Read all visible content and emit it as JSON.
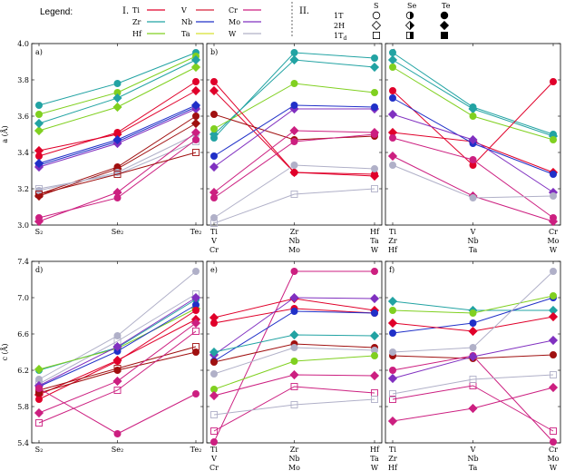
{
  "legend": {
    "title": "Legend:",
    "group1_label": "I.",
    "group2_label": "II.",
    "elements": [
      {
        "name": "Ti",
        "color": "#e0002a"
      },
      {
        "name": "V",
        "color": "#d8203a"
      },
      {
        "name": "Cr",
        "color": "#cc1f80"
      },
      {
        "name": "Zr",
        "color": "#22a3a3"
      },
      {
        "name": "Nb",
        "color": "#2030c8"
      },
      {
        "name": "Mo",
        "color": "#8030c0"
      },
      {
        "name": "Hf",
        "color": "#80d020"
      },
      {
        "name": "Ta",
        "color": "#d8e030"
      },
      {
        "name": "W",
        "color": "#b0b0c8"
      }
    ],
    "phases": [
      "1T",
      "2H",
      "1T_d"
    ],
    "chalcogens": [
      "S",
      "Se",
      "Te"
    ]
  },
  "chart_data": [
    {
      "panel": "a)",
      "type": "line",
      "ylabel": "a (Å)",
      "categories": [
        "S₂",
        "Se₂",
        "Te₂"
      ],
      "ylim": [
        3.0,
        4.0
      ],
      "yticks": [
        "3.0",
        "3.2",
        "3.4",
        "3.6",
        "3.8",
        "4.0"
      ],
      "series": [
        {
          "color": "#22a3a3",
          "marker": "circle",
          "values": [
            3.66,
            3.78,
            3.95
          ]
        },
        {
          "color": "#80d020",
          "marker": "circle",
          "values": [
            3.61,
            3.73,
            3.93
          ]
        },
        {
          "color": "#80d020",
          "marker": "diamond",
          "values": [
            3.52,
            3.65,
            3.87
          ]
        },
        {
          "color": "#22a3a3",
          "marker": "diamond",
          "values": [
            3.56,
            3.7,
            3.91
          ]
        },
        {
          "color": "#e0002a",
          "marker": "circle",
          "values": [
            3.38,
            3.51,
            3.79
          ]
        },
        {
          "color": "#e0002a",
          "marker": "diamond",
          "values": [
            3.41,
            3.5,
            3.74
          ]
        },
        {
          "color": "#2030c8",
          "marker": "circle",
          "values": [
            3.33,
            3.46,
            3.65
          ]
        },
        {
          "color": "#8030c0",
          "marker": "diamond",
          "values": [
            3.32,
            3.45,
            3.64
          ]
        },
        {
          "color": "#2030c8",
          "marker": "diamond",
          "values": [
            3.34,
            3.47,
            3.66
          ]
        },
        {
          "color": "#a01010",
          "marker": "circle",
          "values": [
            3.17,
            3.32,
            3.6
          ]
        },
        {
          "color": "#a01010",
          "marker": "diamond",
          "values": [
            3.16,
            3.31,
            3.56
          ]
        },
        {
          "color": "#b0b0c8",
          "marker": "circle",
          "values": [
            3.19,
            3.29,
            3.5
          ]
        },
        {
          "color": "#b0b0c8",
          "marker": "square",
          "values": [
            3.2,
            3.28,
            3.46
          ]
        },
        {
          "color": "#cc1f80",
          "marker": "diamond",
          "values": [
            3.02,
            3.18,
            3.51
          ]
        },
        {
          "color": "#cc1f80",
          "marker": "circle",
          "values": [
            3.04,
            3.15,
            3.47
          ]
        },
        {
          "color": "#a01010",
          "marker": "square",
          "values": [
            3.17,
            3.28,
            3.4
          ]
        }
      ]
    },
    {
      "panel": "b)",
      "type": "line",
      "categories": [
        "Ti\nV\nCr",
        "Zr\nNb\nMo",
        "Hf\nTa\nW"
      ],
      "ylim": [
        3.0,
        4.0
      ],
      "series": [
        {
          "color": "#22a3a3",
          "marker": "circle",
          "values": [
            3.48,
            3.95,
            3.92
          ]
        },
        {
          "color": "#22a3a3",
          "marker": "diamond",
          "values": [
            3.5,
            3.91,
            3.87
          ]
        },
        {
          "color": "#80d020",
          "marker": "circle",
          "values": [
            3.53,
            3.78,
            3.73
          ]
        },
        {
          "color": "#e0002a",
          "marker": "circle",
          "values": [
            3.79,
            3.29,
            3.28
          ]
        },
        {
          "color": "#e0002a",
          "marker": "diamond",
          "values": [
            3.74,
            3.29,
            3.27
          ]
        },
        {
          "color": "#a01010",
          "marker": "circle",
          "values": [
            3.61,
            3.47,
            3.49
          ]
        },
        {
          "color": "#8030c0",
          "marker": "diamond",
          "values": [
            3.32,
            3.64,
            3.64
          ]
        },
        {
          "color": "#2030c8",
          "marker": "circle",
          "values": [
            3.38,
            3.66,
            3.65
          ]
        },
        {
          "color": "#cc1f80",
          "marker": "diamond",
          "values": [
            3.18,
            3.52,
            3.51
          ]
        },
        {
          "color": "#cc1f80",
          "marker": "circle",
          "values": [
            3.15,
            3.46,
            3.5
          ]
        },
        {
          "color": "#b0b0c8",
          "marker": "circle",
          "values": [
            3.04,
            3.33,
            3.31
          ]
        },
        {
          "color": "#b0b0c8",
          "marker": "square",
          "values": [
            3.01,
            3.17,
            3.2
          ]
        }
      ]
    },
    {
      "panel": "c)",
      "type": "line",
      "categories": [
        "Ti\nZr\nHf",
        "V\nNb\nTa",
        "Cr\nMo\nW"
      ],
      "ylim": [
        3.0,
        4.0
      ],
      "series": [
        {
          "color": "#22a3a3",
          "marker": "circle",
          "values": [
            3.95,
            3.65,
            3.5
          ]
        },
        {
          "color": "#22a3a3",
          "marker": "diamond",
          "values": [
            3.91,
            3.64,
            3.49
          ]
        },
        {
          "color": "#80d020",
          "marker": "circle",
          "values": [
            3.87,
            3.6,
            3.47
          ]
        },
        {
          "color": "#e0002a",
          "marker": "circle",
          "values": [
            3.74,
            3.33,
            3.79
          ]
        },
        {
          "color": "#e0002a",
          "marker": "diamond",
          "values": [
            3.51,
            3.46,
            3.29
          ]
        },
        {
          "color": "#2030c8",
          "marker": "circle",
          "values": [
            3.7,
            3.45,
            3.28
          ]
        },
        {
          "color": "#8030c0",
          "marker": "diamond",
          "values": [
            3.61,
            3.47,
            3.18
          ]
        },
        {
          "color": "#cc1f80",
          "marker": "circle",
          "values": [
            3.48,
            3.36,
            3.04
          ]
        },
        {
          "color": "#cc1f80",
          "marker": "diamond",
          "values": [
            3.38,
            3.16,
            3.02
          ]
        },
        {
          "color": "#b0b0c8",
          "marker": "circle",
          "values": [
            3.33,
            3.15,
            3.16
          ]
        }
      ]
    },
    {
      "panel": "d)",
      "type": "line",
      "ylabel": "c (Å)",
      "categories": [
        "S₂",
        "Se₂",
        "Te₂"
      ],
      "ylim": [
        5.4,
        7.4
      ],
      "yticks": [
        "5.4",
        "5.8",
        "6.2",
        "6.6",
        "7.0",
        "7.4"
      ],
      "series": [
        {
          "color": "#b0b0c8",
          "marker": "circle",
          "values": [
            6.1,
            6.58,
            7.29
          ]
        },
        {
          "color": "#b0b0c8",
          "marker": "square",
          "values": [
            6.05,
            6.52,
            7.04
          ]
        },
        {
          "color": "#22a3a3",
          "marker": "circle",
          "values": [
            6.2,
            6.45,
            6.98
          ]
        },
        {
          "color": "#80d020",
          "marker": "diamond",
          "values": [
            6.21,
            6.44,
            6.88
          ]
        },
        {
          "color": "#2030c8",
          "marker": "circle",
          "values": [
            6.02,
            6.41,
            6.92
          ]
        },
        {
          "color": "#8030c0",
          "marker": "diamond",
          "values": [
            6.03,
            6.46,
            7.0
          ]
        },
        {
          "color": "#e0002a",
          "marker": "circle",
          "values": [
            5.88,
            6.3,
            6.86
          ]
        },
        {
          "color": "#e0002a",
          "marker": "diamond",
          "values": [
            5.93,
            6.31,
            6.76
          ]
        },
        {
          "color": "#a01010",
          "marker": "circle",
          "values": [
            5.95,
            6.2,
            6.4
          ]
        },
        {
          "color": "#a01010",
          "marker": "square",
          "values": [
            5.98,
            6.22,
            6.46
          ]
        },
        {
          "color": "#cc1f80",
          "marker": "circle",
          "values": [
            6.0,
            5.5,
            5.94
          ]
        },
        {
          "color": "#cc1f80",
          "marker": "square",
          "values": [
            5.62,
            5.98,
            6.63
          ]
        },
        {
          "color": "#cc1f80",
          "marker": "diamond",
          "values": [
            5.73,
            6.08,
            6.72
          ]
        }
      ]
    },
    {
      "panel": "e)",
      "type": "line",
      "categories": [
        "Ti\nV\nCr",
        "Zr\nNb\nMo",
        "Hf\nTa\nW"
      ],
      "ylim": [
        5.4,
        7.4
      ],
      "series": [
        {
          "color": "#cc1f80",
          "marker": "circle",
          "values": [
            5.41,
            7.29,
            7.29
          ]
        },
        {
          "color": "#e0002a",
          "marker": "diamond",
          "values": [
            6.78,
            6.99,
            6.86
          ]
        },
        {
          "color": "#e0002a",
          "marker": "circle",
          "values": [
            6.72,
            6.88,
            6.83
          ]
        },
        {
          "color": "#8030c0",
          "marker": "diamond",
          "values": [
            6.37,
            7.0,
            6.99
          ]
        },
        {
          "color": "#2030c8",
          "marker": "circle",
          "values": [
            6.3,
            6.85,
            6.83
          ]
        },
        {
          "color": "#22a3a3",
          "marker": "diamond",
          "values": [
            6.4,
            6.59,
            6.58
          ]
        },
        {
          "color": "#a01010",
          "marker": "circle",
          "values": [
            6.29,
            6.49,
            6.45
          ]
        },
        {
          "color": "#b0b0c8",
          "marker": "circle",
          "values": [
            6.16,
            6.45,
            6.42
          ]
        },
        {
          "color": "#80d020",
          "marker": "circle",
          "values": [
            5.99,
            6.3,
            6.36
          ]
        },
        {
          "color": "#cc1f80",
          "marker": "diamond",
          "values": [
            5.92,
            6.15,
            6.14
          ]
        },
        {
          "color": "#cc1f80",
          "marker": "square",
          "values": [
            5.53,
            6.02,
            5.95
          ]
        },
        {
          "color": "#b0b0c8",
          "marker": "square",
          "values": [
            5.71,
            5.82,
            5.88
          ]
        }
      ]
    },
    {
      "panel": "f)",
      "type": "line",
      "categories": [
        "Ti\nZr\nHf",
        "V\nNb\nTa",
        "Cr\nMo\nW"
      ],
      "ylim": [
        5.4,
        7.4
      ],
      "series": [
        {
          "color": "#22a3a3",
          "marker": "diamond",
          "values": [
            6.96,
            6.86,
            6.86
          ]
        },
        {
          "color": "#2030c8",
          "marker": "circle",
          "values": [
            6.61,
            6.72,
            7.0
          ]
        },
        {
          "color": "#80d020",
          "marker": "circle",
          "values": [
            6.86,
            6.83,
            7.02
          ]
        },
        {
          "color": "#e0002a",
          "marker": "diamond",
          "values": [
            6.72,
            6.63,
            6.79
          ]
        },
        {
          "color": "#a01010",
          "marker": "circle",
          "values": [
            6.36,
            6.33,
            6.37
          ]
        },
        {
          "color": "#cc1f80",
          "marker": "circle",
          "values": [
            6.2,
            6.36,
            5.41
          ]
        },
        {
          "color": "#8030c0",
          "marker": "diamond",
          "values": [
            6.11,
            6.35,
            6.53
          ]
        },
        {
          "color": "#b0b0c8",
          "marker": "circle",
          "values": [
            6.4,
            6.45,
            7.29
          ]
        },
        {
          "color": "#cc1f80",
          "marker": "square",
          "values": [
            5.88,
            6.03,
            5.53
          ]
        },
        {
          "color": "#cc1f80",
          "marker": "diamond",
          "values": [
            5.64,
            5.78,
            6.01
          ]
        },
        {
          "color": "#b0b0c8",
          "marker": "square",
          "values": [
            5.94,
            6.1,
            6.15
          ]
        }
      ]
    }
  ]
}
